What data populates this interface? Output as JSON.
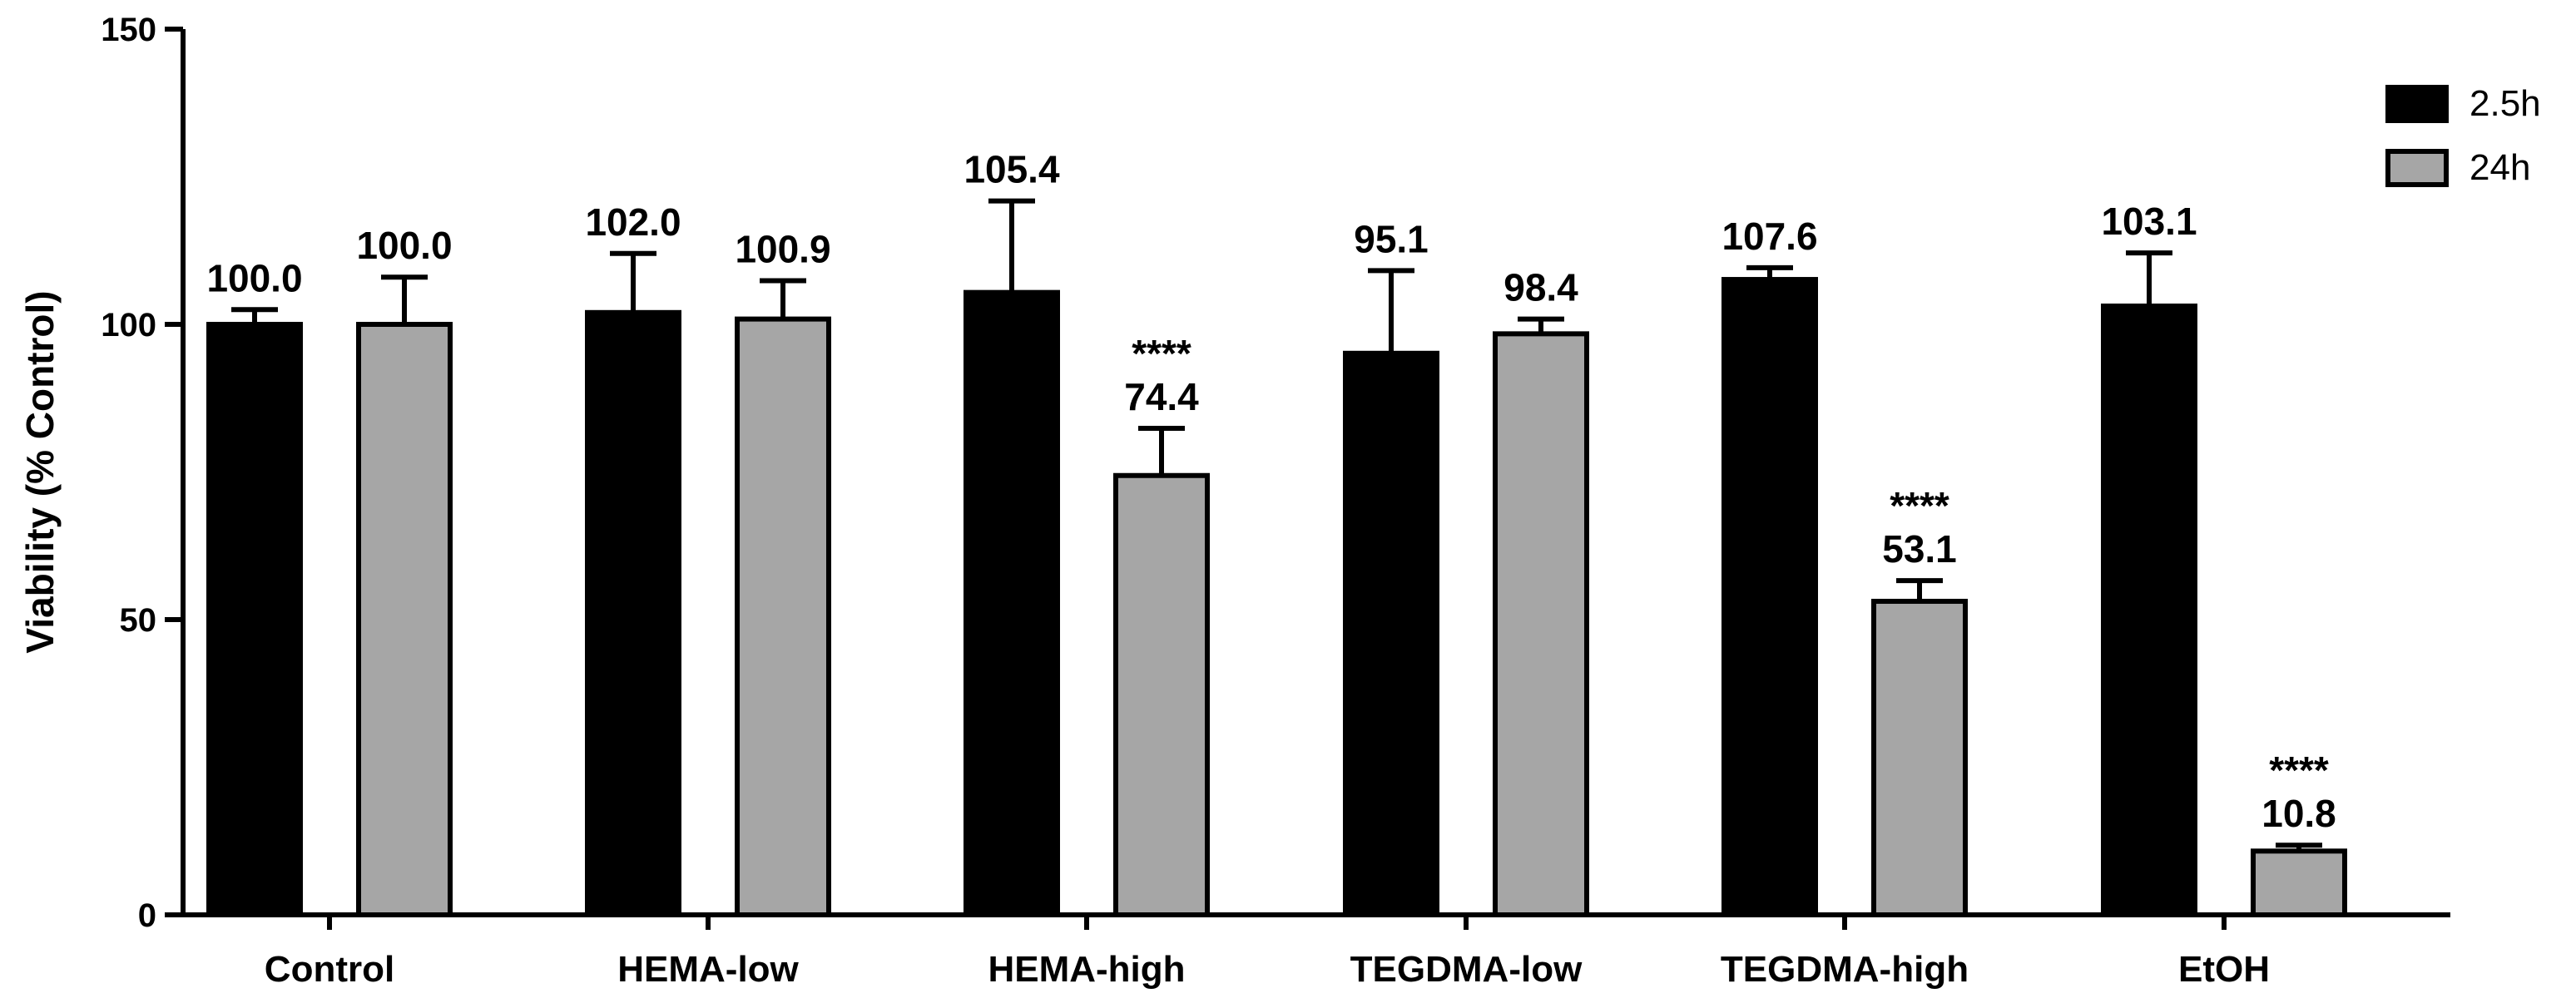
{
  "chart_data": {
    "type": "bar",
    "title": "",
    "xlabel": "",
    "ylabel": "Viability (% Control)",
    "ylim": [
      0,
      150
    ],
    "yticks": [
      0,
      50,
      100,
      150
    ],
    "categories": [
      "Control",
      "HEMA-low",
      "HEMA-high",
      "TEGDMA-low",
      "TEGDMA-high",
      "EtOH"
    ],
    "series": [
      {
        "name": "2.5h",
        "color": "#000000",
        "values": [
          100.0,
          102.0,
          105.4,
          95.1,
          107.6,
          103.1
        ],
        "errors": [
          2.5,
          10.0,
          15.5,
          14.0,
          2.0,
          9.0
        ],
        "labels": [
          "100.0",
          "102.0",
          "105.4",
          "95.1",
          "107.6",
          "103.1"
        ],
        "significance": [
          "",
          "",
          "",
          "",
          "",
          ""
        ]
      },
      {
        "name": "24h",
        "color": "#a6a6a6",
        "values": [
          100.0,
          100.9,
          74.4,
          98.4,
          53.1,
          10.8
        ],
        "errors": [
          8.0,
          6.5,
          8.0,
          2.5,
          3.5,
          1.0
        ],
        "labels": [
          "100.0",
          "100.9",
          "74.4",
          "98.4",
          "53.1",
          "10.8"
        ],
        "significance": [
          "",
          "",
          "****",
          "",
          "****",
          "****"
        ]
      }
    ],
    "legend": {
      "position": "top-right"
    }
  }
}
